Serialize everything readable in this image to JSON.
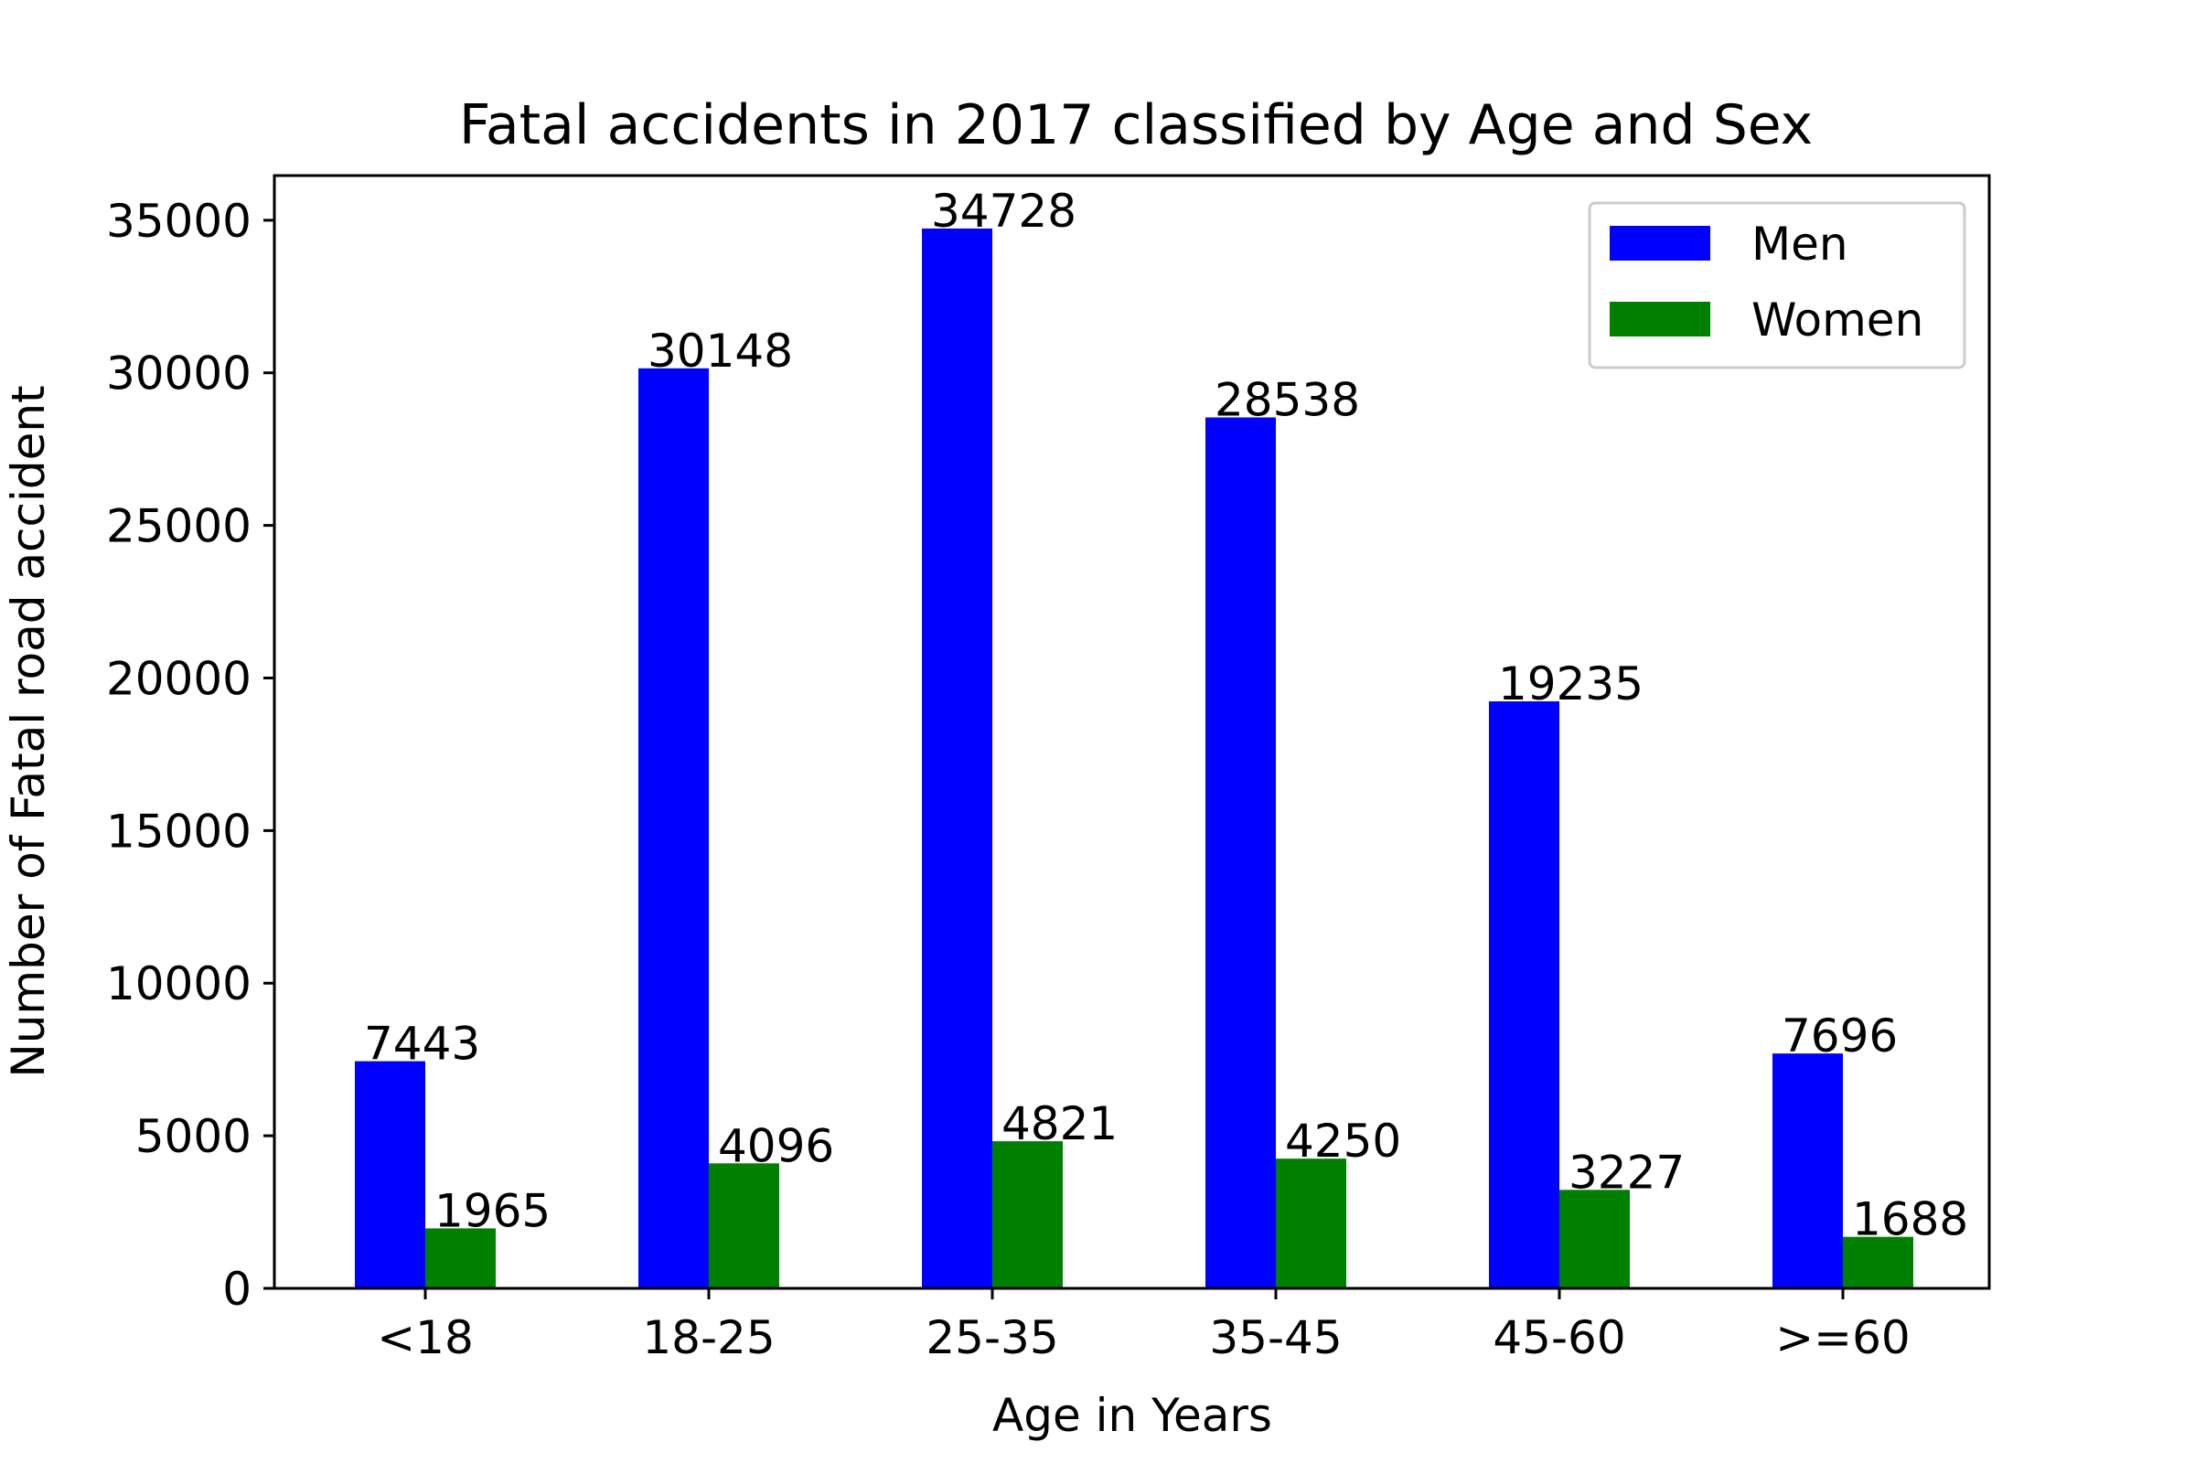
{
  "chart_data": {
    "type": "bar",
    "title": "Fatal accidents in 2017 classified by Age and Sex",
    "xlabel": "Age in Years",
    "ylabel": "Number of Fatal road accident",
    "categories": [
      "<18",
      "18-25",
      "25-35",
      "35-45",
      "45-60",
      ">=60"
    ],
    "series": [
      {
        "name": "Men",
        "color": "#0000ff",
        "values": [
          7443,
          30148,
          34728,
          28538,
          19235,
          7696
        ]
      },
      {
        "name": "Women",
        "color": "#008000",
        "values": [
          1965,
          4096,
          4821,
          4250,
          3227,
          1688
        ]
      }
    ],
    "yticks": [
      0,
      5000,
      10000,
      15000,
      20000,
      25000,
      30000,
      35000
    ],
    "ytick_labels": [
      "0",
      "5000",
      "10000",
      "15000",
      "20000",
      "25000",
      "30000",
      "35000"
    ],
    "ylim": [
      0,
      36464
    ],
    "grid": false,
    "legend": "top-right"
  }
}
